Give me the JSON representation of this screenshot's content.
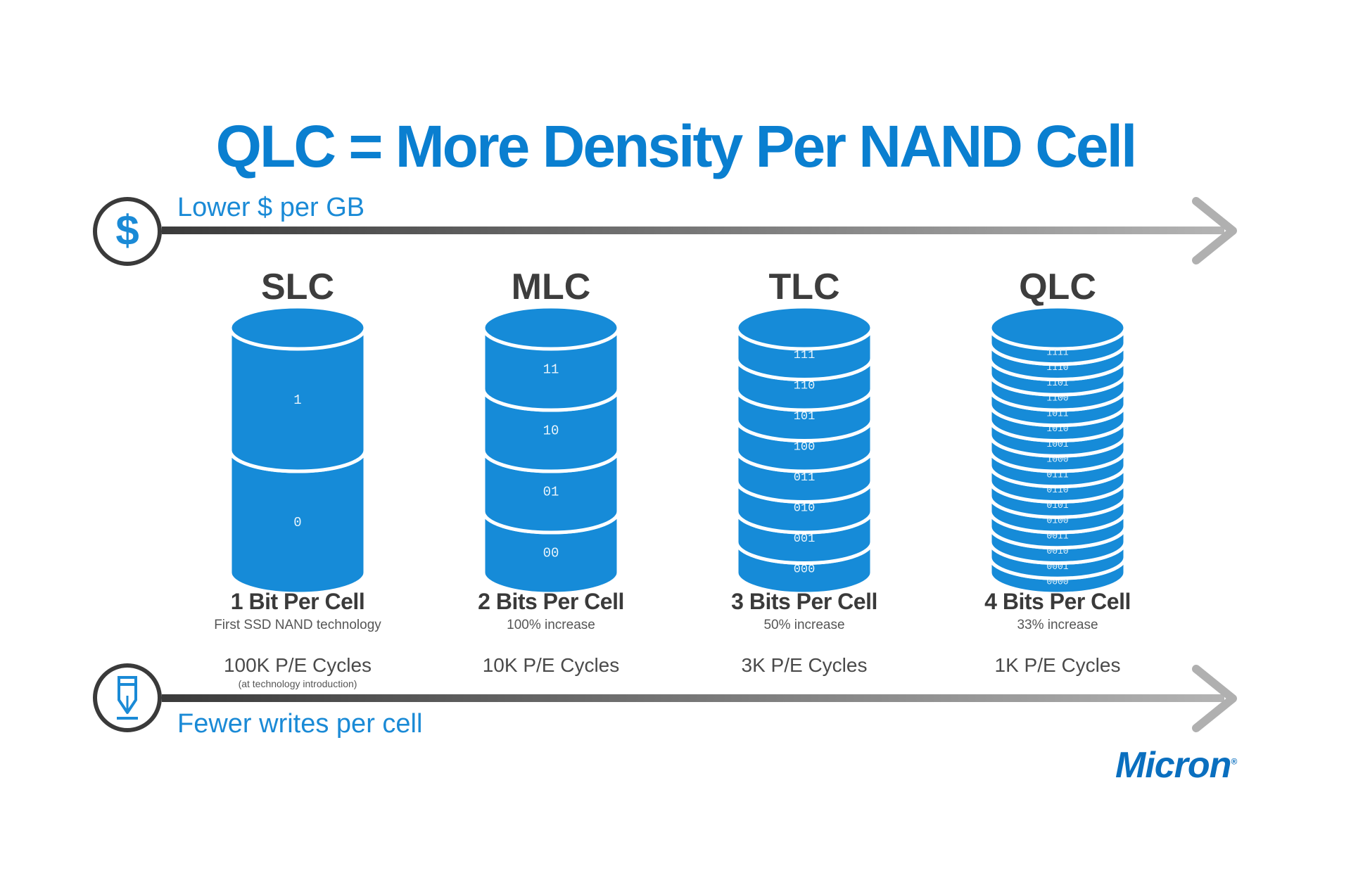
{
  "title": "QLC = More Density Per NAND Cell",
  "top_arrow": {
    "label": "Lower $ per GB",
    "icon": "dollar-icon"
  },
  "bottom_arrow": {
    "label": "Fewer writes per cell",
    "icon": "pen-nib-icon"
  },
  "columns": [
    {
      "name": "SLC",
      "bits_label": "1 Bit Per Cell",
      "desc": "First SSD NAND technology",
      "cycles": "100K P/E Cycles",
      "note": "(at technology introduction)",
      "layers": [
        "1",
        "0"
      ]
    },
    {
      "name": "MLC",
      "bits_label": "2 Bits Per Cell",
      "desc": "100% increase",
      "cycles": "10K P/E Cycles",
      "note": "",
      "layers": [
        "11",
        "10",
        "01",
        "00"
      ]
    },
    {
      "name": "TLC",
      "bits_label": "3 Bits Per Cell",
      "desc": "50% increase",
      "cycles": "3K P/E Cycles",
      "note": "",
      "layers": [
        "111",
        "110",
        "101",
        "100",
        "011",
        "010",
        "001",
        "000"
      ]
    },
    {
      "name": "QLC",
      "bits_label": "4 Bits Per Cell",
      "desc": "33% increase",
      "cycles": "1K P/E Cycles",
      "note": "",
      "layers": [
        "1111",
        "1110",
        "1101",
        "1100",
        "1011",
        "1010",
        "1001",
        "1000",
        "0111",
        "0110",
        "0101",
        "0100",
        "0011",
        "0010",
        "0001",
        "0000"
      ]
    }
  ],
  "colors": {
    "accent": "#0a7fd0",
    "stack_fill": "#168bd8",
    "stack_stroke": "#ffffff",
    "arrow_dark": "#3a3a3a",
    "arrow_light": "#b4b4b4"
  },
  "logo": {
    "text": "Micron",
    "mark": "®"
  }
}
